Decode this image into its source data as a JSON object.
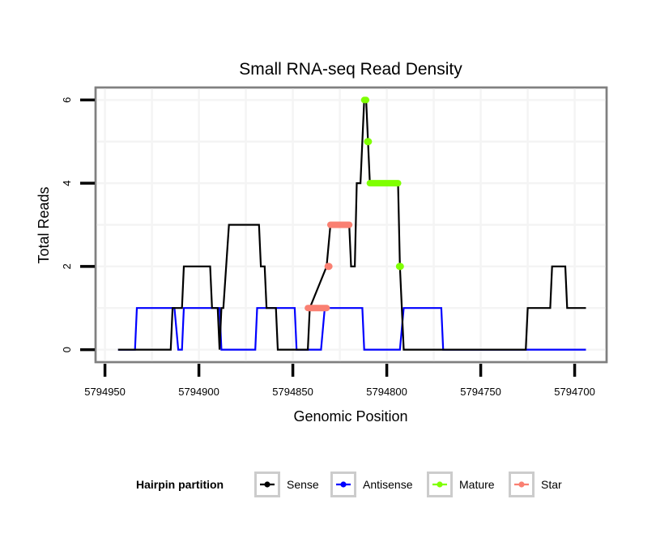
{
  "chart_data": {
    "type": "line",
    "title": "Small RNA-seq Read Density",
    "xlabel": "Genomic Position",
    "ylabel": "Total Reads",
    "x_reversed": true,
    "xlim": [
      5794955,
      5794683
    ],
    "ylim": [
      -0.3,
      6.3
    ],
    "xticks": [
      5794950,
      5794900,
      5794850,
      5794800,
      5794750,
      5794700
    ],
    "xtick_labels": [
      "5794950",
      "5794900",
      "5794850",
      "5794800",
      "5794750",
      "5794700"
    ],
    "yticks": [
      0,
      2,
      4,
      6
    ],
    "ytick_labels": [
      "0",
      "2",
      "4",
      "6"
    ],
    "grid": true,
    "legend": {
      "title": "Hairpin partition",
      "position": "bottom",
      "entries": [
        {
          "name": "Sense",
          "color": "#000000"
        },
        {
          "name": "Antisense",
          "color": "#0000ff"
        },
        {
          "name": "Mature",
          "color": "#7fff00"
        },
        {
          "name": "Star",
          "color": "#fa8072"
        }
      ]
    },
    "series": [
      {
        "name": "Antisense",
        "color": "#0000ff",
        "kind": "line",
        "points": [
          [
            5794943,
            0
          ],
          [
            5794934,
            0
          ],
          [
            5794933,
            1
          ],
          [
            5794913,
            1
          ],
          [
            5794911,
            0
          ],
          [
            5794909,
            0
          ],
          [
            5794908,
            1
          ],
          [
            5794889,
            1
          ],
          [
            5794888,
            0
          ],
          [
            5794870,
            0
          ],
          [
            5794869,
            1
          ],
          [
            5794849,
            1
          ],
          [
            5794848,
            0
          ],
          [
            5794835,
            0
          ],
          [
            5794833,
            1
          ],
          [
            5794813,
            1
          ],
          [
            5794812,
            0
          ],
          [
            5794793,
            0
          ],
          [
            5794791,
            1
          ],
          [
            5794771,
            1
          ],
          [
            5794770,
            0
          ],
          [
            5794694,
            0
          ]
        ]
      },
      {
        "name": "Sense",
        "color": "#000000",
        "kind": "line",
        "points": [
          [
            5794943,
            0
          ],
          [
            5794915,
            0
          ],
          [
            5794914,
            1
          ],
          [
            5794909,
            1
          ],
          [
            5794908,
            2
          ],
          [
            5794894,
            2
          ],
          [
            5794893,
            1
          ],
          [
            5794890,
            1
          ],
          [
            5794889,
            0
          ],
          [
            5794888,
            1
          ],
          [
            5794887,
            1
          ],
          [
            5794884,
            3
          ],
          [
            5794868,
            3
          ],
          [
            5794867,
            2
          ],
          [
            5794865,
            2
          ],
          [
            5794864,
            1
          ],
          [
            5794859,
            1
          ],
          [
            5794858,
            0
          ],
          [
            5794842,
            0
          ],
          [
            5794841,
            1
          ],
          [
            5794832,
            2
          ],
          [
            5794830,
            3
          ],
          [
            5794820,
            3
          ],
          [
            5794819,
            2
          ],
          [
            5794817,
            2
          ],
          [
            5794816,
            4
          ],
          [
            5794814,
            4
          ],
          [
            5794812,
            6
          ],
          [
            5794811,
            6
          ],
          [
            5794810,
            5
          ],
          [
            5794809,
            4
          ],
          [
            5794794,
            4
          ],
          [
            5794793,
            2
          ],
          [
            5794791,
            0
          ],
          [
            5794726,
            0
          ],
          [
            5794725,
            1
          ],
          [
            5794713,
            1
          ],
          [
            5794712,
            2
          ],
          [
            5794705,
            2
          ],
          [
            5794704,
            1
          ],
          [
            5794694,
            1
          ]
        ]
      },
      {
        "name": "Star",
        "color": "#fa8072",
        "kind": "segments",
        "segments": [
          {
            "x": [
              5794842,
              5794832
            ],
            "y": 1
          },
          {
            "x": [
              5794831,
              5794831
            ],
            "y": 2
          },
          {
            "x": [
              5794830,
              5794820
            ],
            "y": 3
          }
        ]
      },
      {
        "name": "Mature",
        "color": "#7fff00",
        "kind": "segments",
        "segments": [
          {
            "x": [
              5794812,
              5794811
            ],
            "y": 6
          },
          {
            "x": [
              5794810,
              5794810
            ],
            "y": 5
          },
          {
            "x": [
              5794809,
              5794794
            ],
            "y": 4
          },
          {
            "x": [
              5794793,
              5794793
            ],
            "y": 2
          }
        ]
      }
    ]
  }
}
